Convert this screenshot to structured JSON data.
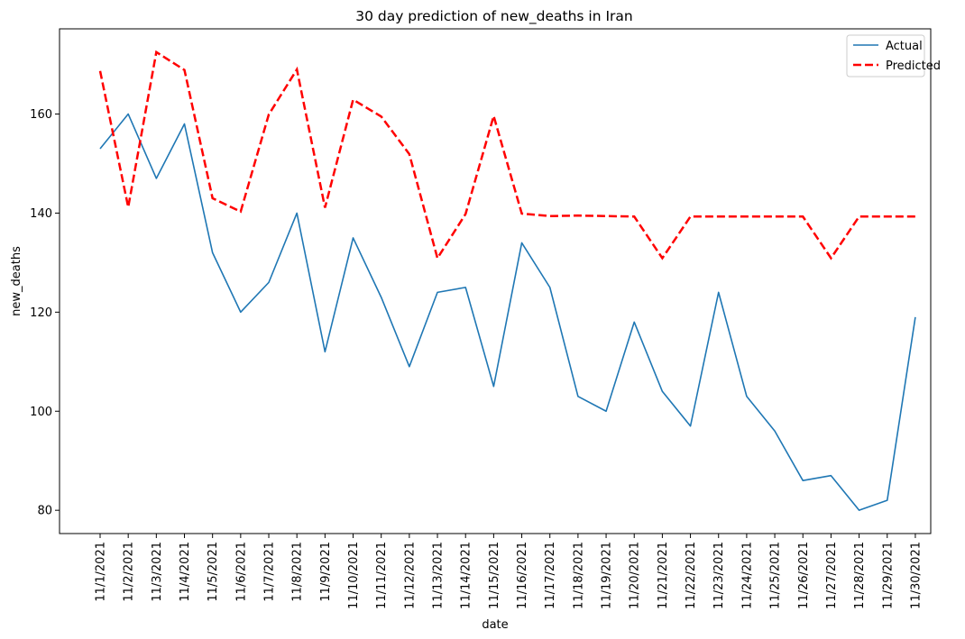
{
  "chart_data": {
    "type": "line",
    "title": "30 day prediction of new_deaths in Iran",
    "xlabel": "date",
    "ylabel": "new_deaths",
    "categories": [
      "11/1/2021",
      "11/2/2021",
      "11/3/2021",
      "11/4/2021",
      "11/5/2021",
      "11/6/2021",
      "11/7/2021",
      "11/8/2021",
      "11/9/2021",
      "11/10/2021",
      "11/11/2021",
      "11/12/2021",
      "11/13/2021",
      "11/14/2021",
      "11/15/2021",
      "11/16/2021",
      "11/17/2021",
      "11/18/2021",
      "11/19/2021",
      "11/20/2021",
      "11/21/2021",
      "11/22/2021",
      "11/23/2021",
      "11/24/2021",
      "11/25/2021",
      "11/26/2021",
      "11/27/2021",
      "11/28/2021",
      "11/29/2021",
      "11/30/2021"
    ],
    "yticks": [
      80,
      100,
      120,
      140,
      160
    ],
    "ylim": [
      75.3,
      177.2
    ],
    "grid": false,
    "legend_position": "top-right",
    "series": [
      {
        "name": "Actual",
        "color": "#1f77b4",
        "style": "solid",
        "values": [
          153,
          160,
          147,
          158,
          132,
          120,
          126,
          140,
          112,
          135,
          123,
          109,
          124,
          125,
          105,
          134,
          125,
          103,
          100,
          118,
          104,
          97,
          124,
          103,
          96,
          86,
          87,
          80,
          82,
          119
        ]
      },
      {
        "name": "Predicted",
        "color": "#ff0000",
        "style": "dashed",
        "values": [
          168.7,
          141.2,
          172.5,
          168.9,
          143.0,
          140.3,
          159.9,
          169.0,
          141.1,
          162.9,
          159.5,
          151.9,
          130.9,
          139.8,
          159.6,
          139.9,
          139.4,
          139.5,
          139.4,
          139.3,
          130.9,
          139.3,
          139.3,
          139.3,
          139.3,
          139.3,
          130.9,
          139.3,
          139.3,
          139.3
        ]
      }
    ]
  }
}
